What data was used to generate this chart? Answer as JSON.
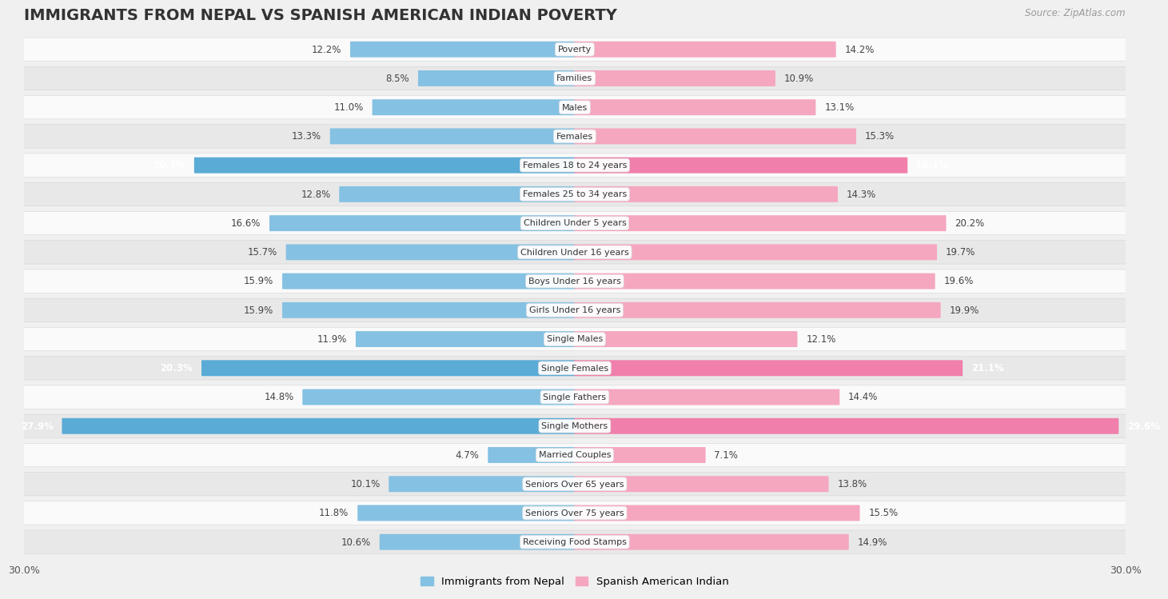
{
  "title": "IMMIGRANTS FROM NEPAL VS SPANISH AMERICAN INDIAN POVERTY",
  "source": "Source: ZipAtlas.com",
  "categories": [
    "Poverty",
    "Families",
    "Males",
    "Females",
    "Females 18 to 24 years",
    "Females 25 to 34 years",
    "Children Under 5 years",
    "Children Under 16 years",
    "Boys Under 16 years",
    "Girls Under 16 years",
    "Single Males",
    "Single Females",
    "Single Fathers",
    "Single Mothers",
    "Married Couples",
    "Seniors Over 65 years",
    "Seniors Over 75 years",
    "Receiving Food Stamps"
  ],
  "nepal_values": [
    12.2,
    8.5,
    11.0,
    13.3,
    20.7,
    12.8,
    16.6,
    15.7,
    15.9,
    15.9,
    11.9,
    20.3,
    14.8,
    27.9,
    4.7,
    10.1,
    11.8,
    10.6
  ],
  "spanish_values": [
    14.2,
    10.9,
    13.1,
    15.3,
    18.1,
    14.3,
    20.2,
    19.7,
    19.6,
    19.9,
    12.1,
    21.1,
    14.4,
    29.6,
    7.1,
    13.8,
    15.5,
    14.9
  ],
  "nepal_color": "#85C1E2",
  "spanish_color": "#F5A7BF",
  "nepal_highlight_color": "#5AABD6",
  "spanish_highlight_color": "#F07FAB",
  "highlight_indices": [
    4,
    11,
    13
  ],
  "bar_height": 0.55,
  "xlim": 30,
  "background_color": "#f0f0f0",
  "row_light_color": "#fafafa",
  "row_dark_color": "#e8e8e8",
  "legend_nepal": "Immigrants from Nepal",
  "legend_spanish": "Spanish American Indian",
  "title_fontsize": 14,
  "value_fontsize": 8.5,
  "category_fontsize": 8.0,
  "source_fontsize": 8.5
}
